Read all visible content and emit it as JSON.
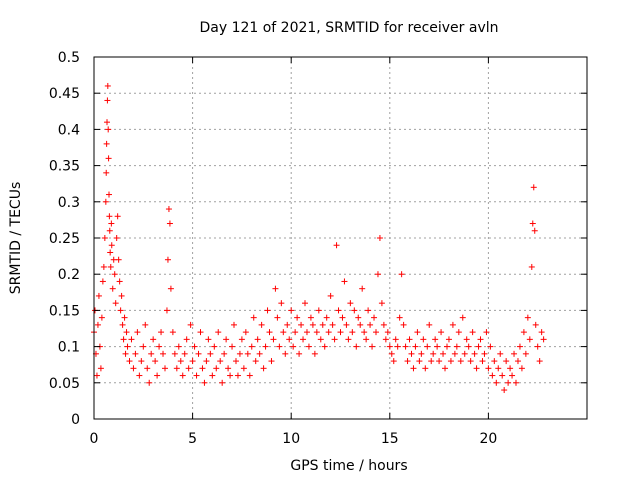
{
  "chart_data": {
    "type": "scatter",
    "title": "Day 121 of 2021, SRMTID for receiver avln",
    "xlabel": "GPS time / hours",
    "ylabel": "SRMTID / TECUs",
    "xlim": [
      0,
      25
    ],
    "ylim": [
      0,
      0.5
    ],
    "grid": true,
    "marker": "+",
    "color": "#ff0000",
    "x_ticks": [
      {
        "value": 0,
        "label": "0"
      },
      {
        "value": 5,
        "label": "5"
      },
      {
        "value": 10,
        "label": "10"
      },
      {
        "value": 15,
        "label": "15"
      },
      {
        "value": 20,
        "label": "20"
      }
    ],
    "y_ticks": [
      {
        "value": 0,
        "label": "0"
      },
      {
        "value": 0.05,
        "label": "0.05"
      },
      {
        "value": 0.1,
        "label": "0.1"
      },
      {
        "value": 0.15,
        "label": "0.15"
      },
      {
        "value": 0.2,
        "label": "0.2"
      },
      {
        "value": 0.25,
        "label": "0.25"
      },
      {
        "value": 0.3,
        "label": "0.3"
      },
      {
        "value": 0.35,
        "label": "0.35"
      },
      {
        "value": 0.4,
        "label": "0.4"
      },
      {
        "value": 0.45,
        "label": "0.45"
      },
      {
        "value": 0.5,
        "label": "0.5"
      }
    ],
    "series": [
      {
        "x": [
          0.0,
          0.05,
          0.1,
          0.15,
          0.2,
          0.25,
          0.3,
          0.35,
          0.4,
          0.45,
          0.5,
          0.55,
          0.6,
          0.62,
          0.64,
          0.66,
          0.68,
          0.7,
          0.72,
          0.74,
          0.76,
          0.78,
          0.8,
          0.82,
          0.85,
          0.88,
          0.9,
          0.95,
          1.0,
          1.05,
          1.1,
          1.15,
          1.2,
          1.25,
          1.3,
          1.35,
          1.4,
          1.45,
          1.5,
          1.55,
          1.6,
          1.65,
          1.7,
          1.8,
          1.9,
          2.0,
          2.1,
          2.2,
          2.3,
          2.4,
          2.5,
          2.6,
          2.7,
          2.8,
          2.9,
          3.0,
          3.1,
          3.2,
          3.3,
          3.4,
          3.5,
          3.6,
          3.7,
          3.75,
          3.8,
          3.85,
          3.9,
          4.0,
          4.1,
          4.2,
          4.3,
          4.4,
          4.5,
          4.6,
          4.7,
          4.8,
          4.9,
          5.0,
          5.1,
          5.2,
          5.3,
          5.4,
          5.5,
          5.6,
          5.7,
          5.8,
          5.9,
          6.0,
          6.1,
          6.2,
          6.3,
          6.4,
          6.5,
          6.6,
          6.7,
          6.8,
          6.9,
          7.0,
          7.1,
          7.2,
          7.3,
          7.4,
          7.5,
          7.6,
          7.7,
          7.8,
          7.9,
          8.0,
          8.1,
          8.2,
          8.3,
          8.4,
          8.5,
          8.6,
          8.7,
          8.8,
          8.9,
          9.0,
          9.1,
          9.2,
          9.3,
          9.4,
          9.5,
          9.6,
          9.7,
          9.8,
          9.9,
          10.0,
          10.1,
          10.2,
          10.3,
          10.4,
          10.5,
          10.6,
          10.7,
          10.8,
          10.9,
          11.0,
          11.1,
          11.2,
          11.3,
          11.4,
          11.5,
          11.6,
          11.7,
          11.8,
          11.9,
          12.0,
          12.1,
          12.2,
          12.3,
          12.4,
          12.5,
          12.6,
          12.7,
          12.8,
          12.9,
          13.0,
          13.1,
          13.2,
          13.3,
          13.4,
          13.5,
          13.6,
          13.7,
          13.8,
          13.9,
          14.0,
          14.1,
          14.2,
          14.3,
          14.4,
          14.5,
          14.6,
          14.7,
          14.8,
          14.9,
          15.0,
          15.1,
          15.2,
          15.3,
          15.4,
          15.5,
          15.6,
          15.7,
          15.8,
          15.9,
          16.0,
          16.1,
          16.2,
          16.3,
          16.4,
          16.5,
          16.6,
          16.7,
          16.8,
          16.9,
          17.0,
          17.1,
          17.2,
          17.3,
          17.4,
          17.5,
          17.6,
          17.7,
          17.8,
          17.9,
          18.0,
          18.1,
          18.2,
          18.3,
          18.4,
          18.5,
          18.6,
          18.7,
          18.8,
          18.9,
          19.0,
          19.1,
          19.2,
          19.3,
          19.4,
          19.5,
          19.6,
          19.7,
          19.8,
          19.9,
          20.0,
          20.1,
          20.2,
          20.3,
          20.4,
          20.5,
          20.6,
          20.7,
          20.8,
          20.9,
          21.0,
          21.1,
          21.2,
          21.3,
          21.4,
          21.5,
          21.6,
          21.7,
          21.8,
          21.9,
          22.0,
          22.1,
          22.2,
          22.25,
          22.3,
          22.35,
          22.4,
          22.5,
          22.6,
          22.7,
          22.8
        ],
        "y": [
          0.12,
          0.15,
          0.09,
          0.06,
          0.13,
          0.17,
          0.1,
          0.07,
          0.14,
          0.19,
          0.21,
          0.25,
          0.3,
          0.34,
          0.38,
          0.41,
          0.44,
          0.46,
          0.4,
          0.36,
          0.31,
          0.28,
          0.26,
          0.23,
          0.21,
          0.27,
          0.24,
          0.18,
          0.22,
          0.2,
          0.16,
          0.25,
          0.28,
          0.22,
          0.19,
          0.15,
          0.17,
          0.13,
          0.11,
          0.14,
          0.09,
          0.12,
          0.1,
          0.08,
          0.11,
          0.07,
          0.09,
          0.12,
          0.06,
          0.08,
          0.1,
          0.13,
          0.07,
          0.05,
          0.09,
          0.11,
          0.08,
          0.06,
          0.1,
          0.12,
          0.09,
          0.07,
          0.15,
          0.22,
          0.29,
          0.27,
          0.18,
          0.12,
          0.09,
          0.07,
          0.1,
          0.08,
          0.06,
          0.09,
          0.11,
          0.07,
          0.13,
          0.08,
          0.1,
          0.06,
          0.09,
          0.12,
          0.07,
          0.05,
          0.08,
          0.11,
          0.09,
          0.06,
          0.1,
          0.07,
          0.12,
          0.08,
          0.05,
          0.09,
          0.11,
          0.07,
          0.06,
          0.1,
          0.13,
          0.08,
          0.06,
          0.09,
          0.11,
          0.07,
          0.12,
          0.09,
          0.06,
          0.1,
          0.14,
          0.08,
          0.11,
          0.09,
          0.13,
          0.07,
          0.1,
          0.15,
          0.12,
          0.08,
          0.11,
          0.18,
          0.14,
          0.1,
          0.16,
          0.12,
          0.09,
          0.13,
          0.11,
          0.15,
          0.1,
          0.12,
          0.14,
          0.09,
          0.13,
          0.11,
          0.16,
          0.12,
          0.1,
          0.14,
          0.13,
          0.09,
          0.12,
          0.15,
          0.11,
          0.13,
          0.1,
          0.14,
          0.12,
          0.17,
          0.13,
          0.11,
          0.24,
          0.15,
          0.12,
          0.14,
          0.19,
          0.13,
          0.11,
          0.16,
          0.12,
          0.15,
          0.1,
          0.14,
          0.13,
          0.18,
          0.12,
          0.11,
          0.15,
          0.13,
          0.1,
          0.14,
          0.12,
          0.2,
          0.25,
          0.16,
          0.13,
          0.11,
          0.12,
          0.1,
          0.09,
          0.08,
          0.11,
          0.1,
          0.14,
          0.2,
          0.13,
          0.1,
          0.08,
          0.11,
          0.09,
          0.07,
          0.1,
          0.12,
          0.08,
          0.09,
          0.11,
          0.07,
          0.1,
          0.13,
          0.08,
          0.09,
          0.11,
          0.1,
          0.08,
          0.12,
          0.09,
          0.07,
          0.1,
          0.11,
          0.08,
          0.13,
          0.09,
          0.1,
          0.12,
          0.08,
          0.14,
          0.09,
          0.11,
          0.1,
          0.08,
          0.12,
          0.09,
          0.07,
          0.1,
          0.11,
          0.08,
          0.09,
          0.12,
          0.07,
          0.1,
          0.06,
          0.08,
          0.05,
          0.07,
          0.09,
          0.06,
          0.04,
          0.08,
          0.05,
          0.07,
          0.06,
          0.09,
          0.05,
          0.08,
          0.1,
          0.07,
          0.12,
          0.09,
          0.14,
          0.11,
          0.21,
          0.27,
          0.32,
          0.26,
          0.13,
          0.1,
          0.08,
          0.12,
          0.11
        ]
      }
    ]
  }
}
